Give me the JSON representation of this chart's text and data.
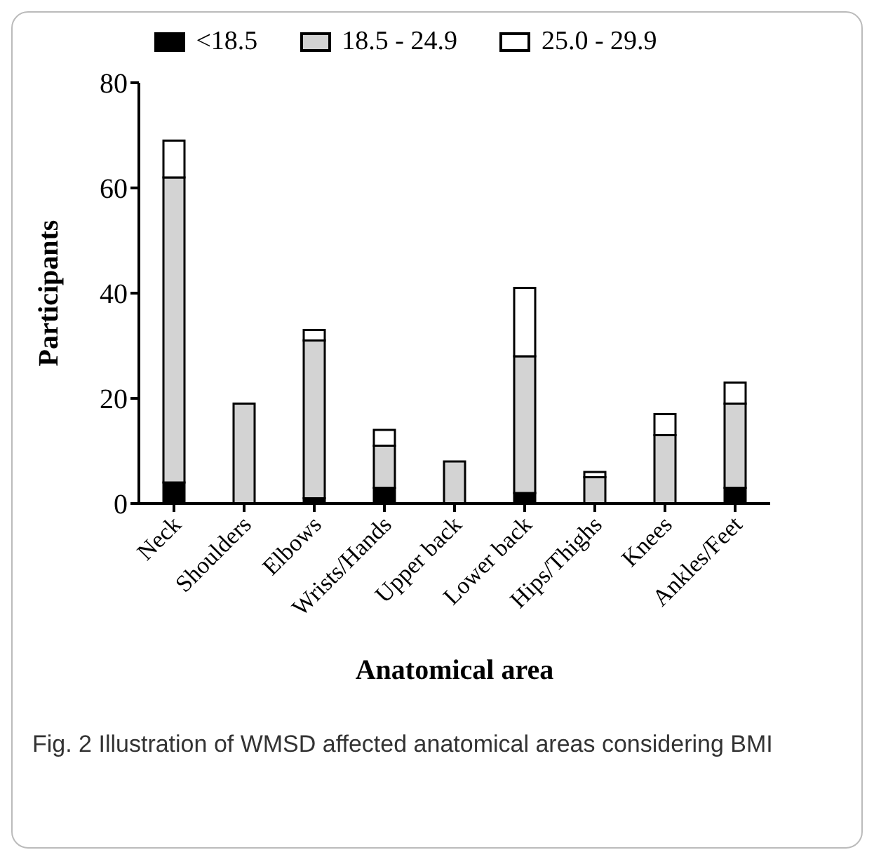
{
  "chart_data": {
    "type": "bar",
    "stacked": true,
    "xlabel": "Anatomical area",
    "ylabel": "Participants",
    "categories": [
      "Neck",
      "Shoulders",
      "Elbows",
      "Wrists/Hands",
      "Upper back",
      "Lower back",
      "Hips/Thighs",
      "Knees",
      "Ankles/Feet"
    ],
    "series": [
      {
        "name": "<18.5",
        "color": "#000000",
        "values": [
          4,
          0,
          1,
          3,
          0,
          2,
          0,
          0,
          3
        ]
      },
      {
        "name": "18.5 - 24.9",
        "color": "#d3d3d3",
        "values": [
          58,
          19,
          30,
          8,
          8,
          26,
          5,
          13,
          16
        ]
      },
      {
        "name": "25.0 - 29.9",
        "color": "#ffffff",
        "values": [
          7,
          0,
          2,
          3,
          0,
          13,
          1,
          4,
          4
        ]
      }
    ],
    "ylim": [
      0,
      80
    ],
    "yticks": [
      0,
      20,
      40,
      60,
      80
    ],
    "grid": false,
    "legend": "top",
    "annotations": [
      "Fig. 2 Illustration of WMSD affected anatomical areas considering BMI"
    ]
  }
}
